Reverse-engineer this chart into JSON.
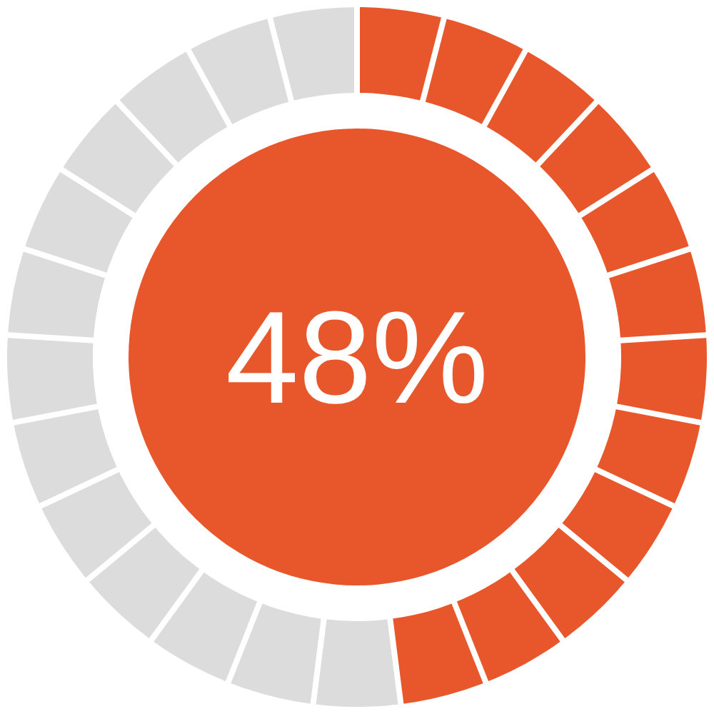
{
  "chart_data": {
    "type": "donut",
    "categories": [
      null,
      null
    ],
    "values": [
      48,
      52
    ],
    "colors": [
      "#e8572b",
      "#dcdcdc"
    ],
    "annotations": [
      "48%"
    ]
  }
}
